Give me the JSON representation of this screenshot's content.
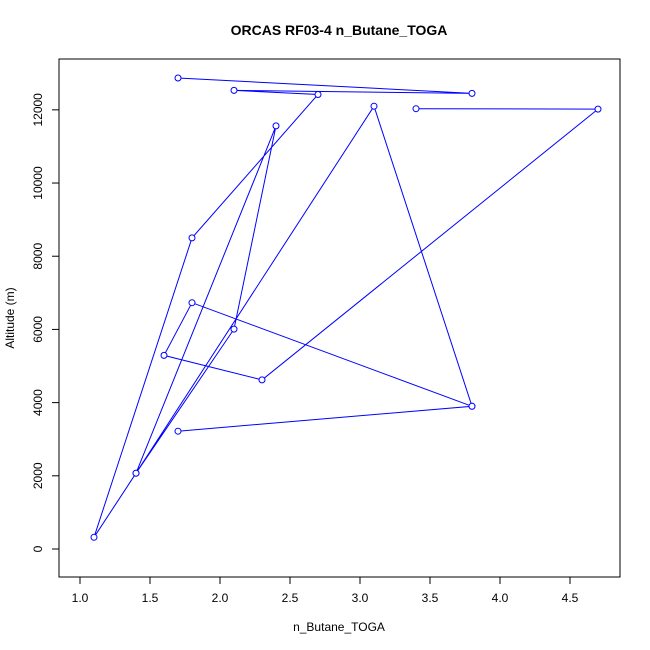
{
  "chart_data": {
    "type": "line",
    "title": "ORCAS RF03-4 n_Butane_TOGA",
    "xlabel": "n_Butane_TOGA",
    "ylabel": "Altitude (m)",
    "xlim": [
      1.0,
      4.7
    ],
    "ylim": [
      0,
      12870
    ],
    "xticks": [
      1.0,
      1.5,
      2.0,
      2.5,
      3.0,
      3.5,
      4.0,
      4.5
    ],
    "xtick_labels": [
      "1.0",
      "1.5",
      "2.0",
      "2.5",
      "3.0",
      "3.5",
      "4.0",
      "4.5"
    ],
    "yticks": [
      0,
      2000,
      4000,
      6000,
      8000,
      10000,
      12000
    ],
    "ytick_labels": [
      "0",
      "2000",
      "4000",
      "6000",
      "8000",
      "10000",
      "12000"
    ],
    "series": [
      {
        "color": "#0000ff",
        "marker": "open-circle",
        "x": [
          1.7,
          3.8,
          2.1,
          2.7,
          1.8,
          1.1,
          1.4,
          2.1,
          2.4,
          1.4,
          3.1,
          3.8,
          1.7,
          3.8,
          1.8,
          1.6,
          2.3,
          4.7,
          3.4
        ],
        "y": [
          12870,
          12450,
          12530,
          12420,
          8500,
          320,
          2070,
          6010,
          11560,
          2070,
          12100,
          3900,
          3220,
          3900,
          6730,
          5290,
          4620,
          12020,
          12030
        ]
      }
    ],
    "grid": false,
    "legend": "none"
  }
}
